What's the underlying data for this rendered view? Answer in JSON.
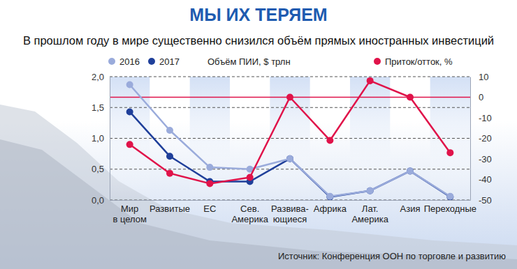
{
  "chart_data": {
    "type": "line",
    "title": "МЫ ИХ ТЕРЯЕМ",
    "subtitle": "В прошлом году в мире существенно снизился  объём прямых иностранных инвестиций",
    "ylabel": "Объём ПИИ, $ трлн",
    "source": "Источник: Конференция ООН по торговле и развитию",
    "categories": [
      "Мир\nв целом",
      "Развитые",
      "ЕС",
      "Сев.\nАмерика",
      "Развива-\nющиеся",
      "Африка",
      "Лат.\nАмерика",
      "Азия",
      "Переходные"
    ],
    "series": [
      {
        "name": "2016",
        "color": "#9aabdb",
        "values": [
          1.87,
          1.13,
          0.53,
          0.5,
          0.67,
          0.06,
          0.15,
          0.47,
          0.06
        ]
      },
      {
        "name": "2017",
        "color": "#1f3f9a",
        "values": [
          1.43,
          0.71,
          0.3,
          0.3,
          0.67,
          0.05,
          0.15,
          0.47,
          0.05
        ]
      },
      {
        "name": "Приток/отток, %",
        "color": "#e0134a",
        "axis": "y2",
        "values": [
          -23,
          -37,
          -42,
          -39,
          0,
          -21,
          8,
          0,
          -27
        ]
      }
    ],
    "ylim": [
      0,
      2
    ],
    "yticks": [
      {
        "value": 0,
        "label": "0,0"
      },
      {
        "value": 0.5,
        "label": "0,5"
      },
      {
        "value": 1,
        "label": "1,0"
      },
      {
        "value": 1.5,
        "label": "1,5"
      },
      {
        "value": 2,
        "label": "2,0"
      }
    ],
    "y2lim": [
      -50,
      10
    ],
    "y2ticks": [
      -50,
      -40,
      -30,
      -20,
      -10,
      0,
      10
    ],
    "grid": true,
    "legend": "top",
    "marker": "circle"
  }
}
